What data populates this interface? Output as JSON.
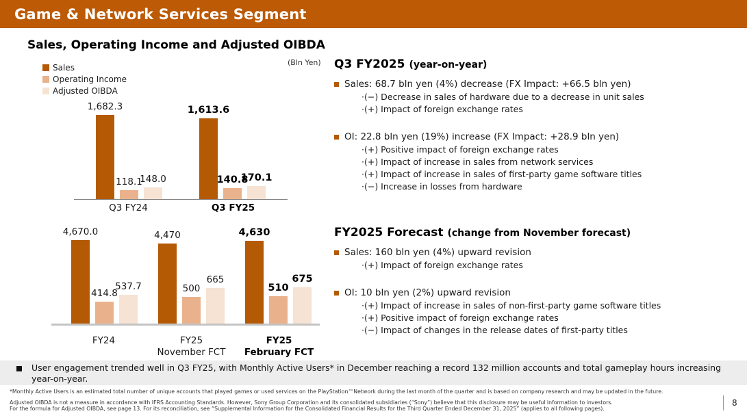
{
  "header": {
    "title": "Game & Network Services Segment",
    "bg_color": "#bc5a05"
  },
  "left": {
    "chart_title": "Sales, Operating Income and Adjusted OIBDA",
    "unit_label": "(Bln Yen)",
    "legend": [
      {
        "label": "Sales",
        "color": "#b45a05"
      },
      {
        "label": "Operating Income",
        "color": "#eab28c"
      },
      {
        "label": "Adjusted OIBDA",
        "color": "#f6e3d3"
      }
    ]
  },
  "chart_data": [
    {
      "type": "bar",
      "title": "Quarterly: Sales, Operating Income and Adjusted OIBDA",
      "unit": "Bln Yen",
      "categories": [
        "Q3 FY24",
        "Q3 FY25"
      ],
      "bold_categories": [
        1
      ],
      "series": [
        {
          "name": "Sales",
          "color": "#b45a05",
          "axis": "primary",
          "values": [
            1682.3,
            1613.6
          ],
          "labels": [
            "1,682.3",
            "1,613.6"
          ]
        },
        {
          "name": "Operating Income",
          "color": "#eab28c",
          "axis": "secondary",
          "values": [
            118.1,
            140.8
          ],
          "labels": [
            "118.1",
            "140.8"
          ]
        },
        {
          "name": "Adjusted OIBDA",
          "color": "#f6e3d3",
          "axis": "secondary",
          "values": [
            148.0,
            170.1
          ],
          "labels": [
            "148.0",
            "170.1"
          ]
        }
      ],
      "primary_max": 1682.3,
      "secondary_max": 1090,
      "legend_position": "top-left",
      "grid": false
    },
    {
      "type": "bar",
      "title": "Annual: Sales, Operating Income and Adjusted OIBDA",
      "unit": "Bln Yen",
      "categories": [
        "FY24",
        "FY25\nNovember FCT",
        "FY25\nFebruary FCT"
      ],
      "bold_categories": [
        2
      ],
      "series": [
        {
          "name": "Sales",
          "color": "#b45a05",
          "axis": "primary",
          "values": [
            4670.0,
            4470,
            4630
          ],
          "labels": [
            "4,670.0",
            "4,470",
            "4,630"
          ]
        },
        {
          "name": "Operating Income",
          "color": "#eab28c",
          "axis": "secondary",
          "values": [
            414.8,
            500,
            510
          ],
          "labels": [
            "414.8",
            "500",
            "510"
          ]
        },
        {
          "name": "Adjusted OIBDA",
          "color": "#f6e3d3",
          "axis": "secondary",
          "values": [
            537.7,
            665,
            675
          ],
          "labels": [
            "537.7",
            "665",
            "675"
          ]
        }
      ],
      "primary_max": 4670,
      "secondary_max": 1560,
      "legend_position": "shared",
      "grid": false
    }
  ],
  "right": {
    "section1": {
      "title": "Q3 FY2025",
      "title_sub": "(year-on-year)",
      "bullets": [
        {
          "text": "Sales: 68.7 bln yen (4%) decrease (FX Impact: +66.5 bln yen)",
          "subs": [
            "·(−) Decrease in sales of hardware due to a decrease in unit sales",
            "·(+) Impact of foreign exchange rates"
          ]
        },
        {
          "text": "OI: 22.8 bln yen (19%) increase (FX Impact: +28.9 bln yen)",
          "subs": [
            "·(+) Positive impact of foreign exchange rates",
            "·(+) Impact of increase in sales from network services",
            "·(+) Impact of increase in sales of first-party game software titles",
            "·(−) Increase in losses from hardware"
          ]
        }
      ]
    },
    "section2": {
      "title": "FY2025 Forecast",
      "title_sub": "(change from November forecast)",
      "bullets": [
        {
          "text": "Sales: 160 bln yen (4%) upward revision",
          "subs": [
            "·(+) Impact of foreign exchange rates"
          ]
        },
        {
          "text": "OI: 10 bln yen (2%) upward revision",
          "subs": [
            "·(+) Impact of increase in sales of non-first-party game software titles",
            "·(+) Positive impact of foreign exchange rates",
            "·(−) Impact of changes in the release dates of first-party titles"
          ]
        }
      ]
    }
  },
  "bottom": {
    "highlight": "User engagement trended well in Q3 FY25, with Monthly Active Users* in December reaching a record 132 million accounts and total gameplay hours increasing year-on-year.",
    "footnote1": "*Monthly Active Users is an estimated total number of unique accounts that played games or used services on the PlayStation™Network during the last month of the quarter and is based on company research and may be updated in the future.",
    "footnote2a": "Adjusted OIBDA is not a measure in accordance with IFRS Accounting Standards. However, Sony Group Corporation and its consolidated subsidiaries (“Sony”) believe that this disclosure may be useful information to investors.",
    "footnote2b": "For the formula for Adjusted OIBDA, see page 13. For its reconciliation, see “Supplemental Information for the Consolidated Financial Results for the Third Quarter Ended December 31, 2025” (applies to all following pages).",
    "page_number": "8"
  }
}
